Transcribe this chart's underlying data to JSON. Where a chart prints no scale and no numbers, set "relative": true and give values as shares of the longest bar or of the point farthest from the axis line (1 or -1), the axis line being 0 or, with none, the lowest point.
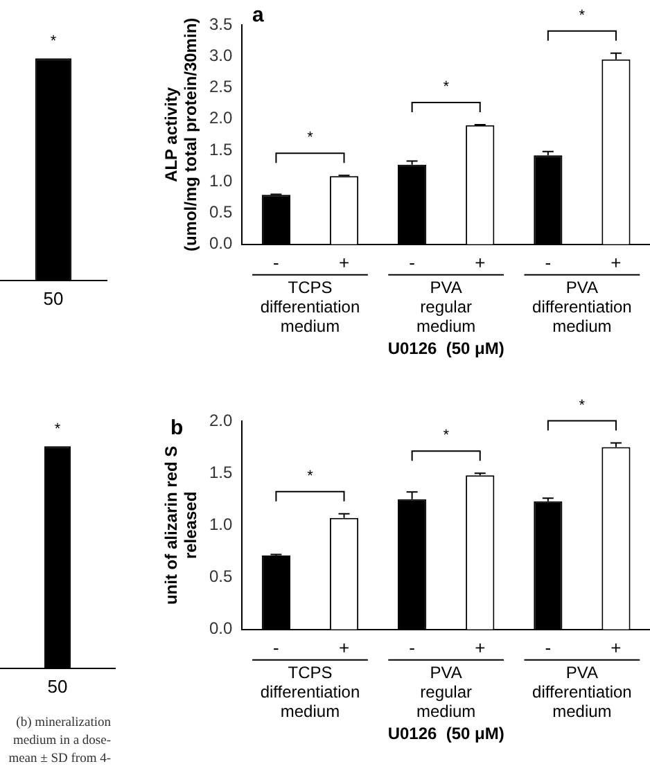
{
  "chart_data": [
    {
      "type": "bar",
      "relative": true,
      "categories": [
        "50"
      ],
      "values": [
        1
      ],
      "colors": [
        "#000000"
      ],
      "annotations": [
        "*"
      ]
    },
    {
      "type": "bar",
      "title": "a",
      "ylabel": "ALP activity\n(umol/mg total protein/30min)",
      "xlabel": "U0126  (50 μM)",
      "categories": [
        "-",
        "+",
        "-",
        "+",
        "-",
        "+"
      ],
      "values": [
        0.79,
        1.09,
        1.27,
        1.9,
        1.42,
        2.95
      ],
      "errors": [
        0.01,
        0.01,
        0.06,
        0.01,
        0.06,
        0.1
      ],
      "colors": [
        "#000000",
        "#ffffff",
        "#000000",
        "#ffffff",
        "#000000",
        "#ffffff"
      ],
      "ylim": [
        0,
        3.5
      ],
      "yticks": [
        {
          "value": 0,
          "label": "0.0"
        },
        {
          "value": 0.5,
          "label": "0.5"
        },
        {
          "value": 1,
          "label": "1.0"
        },
        {
          "value": 1.5,
          "label": "1.5"
        },
        {
          "value": 2,
          "label": "2.0"
        },
        {
          "value": 2.5,
          "label": "2.5"
        },
        {
          "value": 3,
          "label": "3.0"
        },
        {
          "value": 3.5,
          "label": "3.5"
        }
      ],
      "grid": false,
      "annotations": [
        "*",
        "*",
        "*",
        "TCPS\ndifferentiation\nmedium",
        "PVA\nregular\nmedium",
        "PVA\ndifferentiation\nmedium"
      ]
    },
    {
      "type": "bar",
      "relative": true,
      "categories": [
        "50"
      ],
      "values": [
        1
      ],
      "colors": [
        "#000000"
      ],
      "annotations": [
        "*",
        "(b) mineralization",
        "medium in a dose-",
        "mean ± SD from 4-"
      ]
    },
    {
      "type": "bar",
      "title": "b",
      "ylabel": "unit of alizarin red S\nreleased",
      "xlabel": "U0126  (50 μM)",
      "categories": [
        "-",
        "+",
        "-",
        "+",
        "-",
        "+"
      ],
      "values": [
        0.71,
        1.07,
        1.25,
        1.48,
        1.23,
        1.75
      ],
      "errors": [
        0.01,
        0.04,
        0.07,
        0.02,
        0.03,
        0.04
      ],
      "colors": [
        "#000000",
        "#ffffff",
        "#000000",
        "#ffffff",
        "#000000",
        "#ffffff"
      ],
      "ylim": [
        0,
        2
      ],
      "yticks": [
        {
          "value": 0,
          "label": "0.0"
        },
        {
          "value": 0.5,
          "label": "0.5"
        },
        {
          "value": 1,
          "label": "1.0"
        },
        {
          "value": 1.5,
          "label": "1.5"
        },
        {
          "value": 2,
          "label": "2.0"
        }
      ],
      "grid": false,
      "annotations": [
        "*",
        "*",
        "*",
        "TCPS\ndifferentiation\nmedium",
        "PVA\nregular\nmedium",
        "PVA\ndifferentiation\nmedium"
      ]
    }
  ]
}
